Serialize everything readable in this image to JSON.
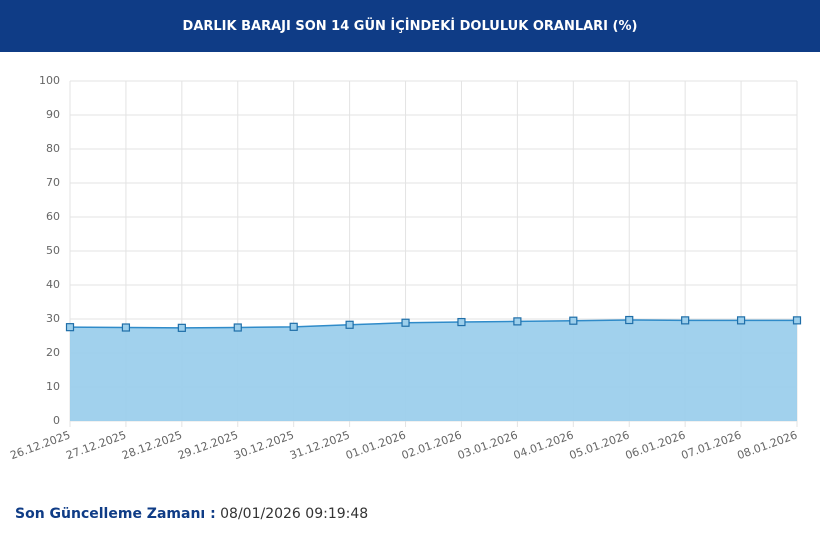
{
  "chart_data": {
    "type": "area",
    "title": "DARLIK BARAJI SON 14 GÜN İÇİNDEKİ DOLULUK ORANLARI (%)",
    "categories": [
      "26.12.2025",
      "27.12.2025",
      "28.12.2025",
      "29.12.2025",
      "30.12.2025",
      "31.12.2025",
      "01.01.2026",
      "02.01.2026",
      "03.01.2026",
      "04.01.2026",
      "05.01.2026",
      "06.01.2026",
      "07.01.2026",
      "08.01.2026"
    ],
    "values": [
      27.6,
      27.5,
      27.4,
      27.5,
      27.7,
      28.3,
      28.9,
      29.1,
      29.3,
      29.5,
      29.7,
      29.6,
      29.6,
      29.6
    ],
    "color": "#2f8bc9",
    "fill_color": "#9ccfec",
    "ylim": [
      0,
      100
    ],
    "yticks": [
      0,
      10,
      20,
      30,
      40,
      50,
      60,
      70,
      80,
      90,
      100
    ],
    "grid": true
  },
  "footer": {
    "label": "Son Güncelleme Zamanı :",
    "value": "08/01/2026 09:19:48"
  }
}
